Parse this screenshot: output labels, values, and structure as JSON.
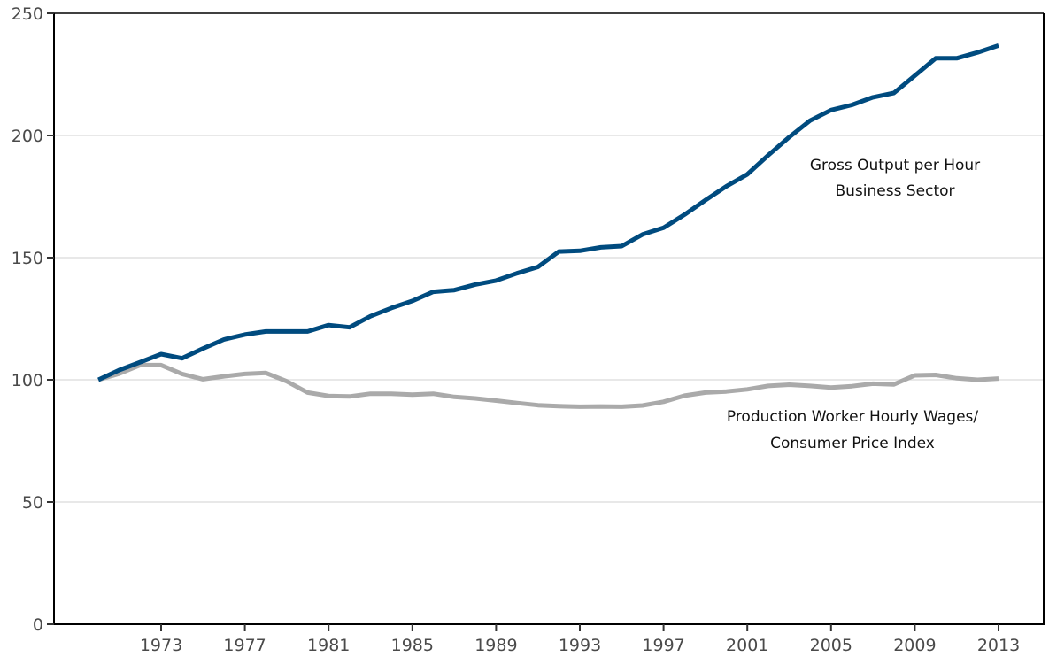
{
  "chart_data": {
    "type": "line",
    "title": "",
    "xlabel": "",
    "ylabel": "",
    "ylim": [
      0,
      250
    ],
    "xlim": [
      1967.4,
      2015.2
    ],
    "yticks": [
      0,
      50,
      100,
      150,
      200,
      250
    ],
    "xticks": [
      1973,
      1977,
      1981,
      1985,
      1989,
      1993,
      1997,
      2001,
      2005,
      2009,
      2013
    ],
    "grid": "horizontal",
    "x": [
      1970,
      1971,
      1972,
      1973,
      1974,
      1975,
      1976,
      1977,
      1978,
      1979,
      1980,
      1981,
      1982,
      1983,
      1984,
      1985,
      1986,
      1987,
      1988,
      1989,
      1990,
      1991,
      1992,
      1993,
      1994,
      1995,
      1996,
      1997,
      1998,
      1999,
      2000,
      2001,
      2002,
      2003,
      2004,
      2005,
      2006,
      2007,
      2008,
      2009,
      2010,
      2011,
      2012,
      2013
    ],
    "series": [
      {
        "name": "Gross Output per Hour Business Sector",
        "label_lines": [
          "Gross Output per Hour",
          "Business Sector"
        ],
        "color": "#004b7f",
        "values": [
          100,
          104,
          107.2,
          110.5,
          108.8,
          112.8,
          116.5,
          118.5,
          119.8,
          119.8,
          119.8,
          122.4,
          121.5,
          126,
          129.4,
          132.3,
          136,
          136.7,
          139,
          140.6,
          143.6,
          146.2,
          152.5,
          152.8,
          154.2,
          154.7,
          159.5,
          162.2,
          167.6,
          173.5,
          179.2,
          184.1,
          191.9,
          199.3,
          206.1,
          210.4,
          212.5,
          215.6,
          217.4,
          224.5,
          231.6,
          231.6,
          234,
          236.8
        ]
      },
      {
        "name": "Production Worker Hourly Wages/ Consumer Price Index",
        "label_lines": [
          "Production Worker Hourly Wages/",
          "Consumer Price Index"
        ],
        "color": "#aaaaaa",
        "values": [
          100,
          102.5,
          106,
          106,
          102.4,
          100.2,
          101.4,
          102.4,
          102.8,
          99.4,
          94.8,
          93.4,
          93.2,
          94.3,
          94.3,
          93.9,
          94.3,
          93,
          92.4,
          91.5,
          90.5,
          89.6,
          89.2,
          89,
          89.1,
          89,
          89.5,
          91,
          93.5,
          94.8,
          95.2,
          96.1,
          97.5,
          98,
          97.5,
          96.8,
          97.4,
          98.4,
          98.1,
          101.8,
          102,
          100.6,
          100,
          100.5
        ]
      }
    ]
  }
}
